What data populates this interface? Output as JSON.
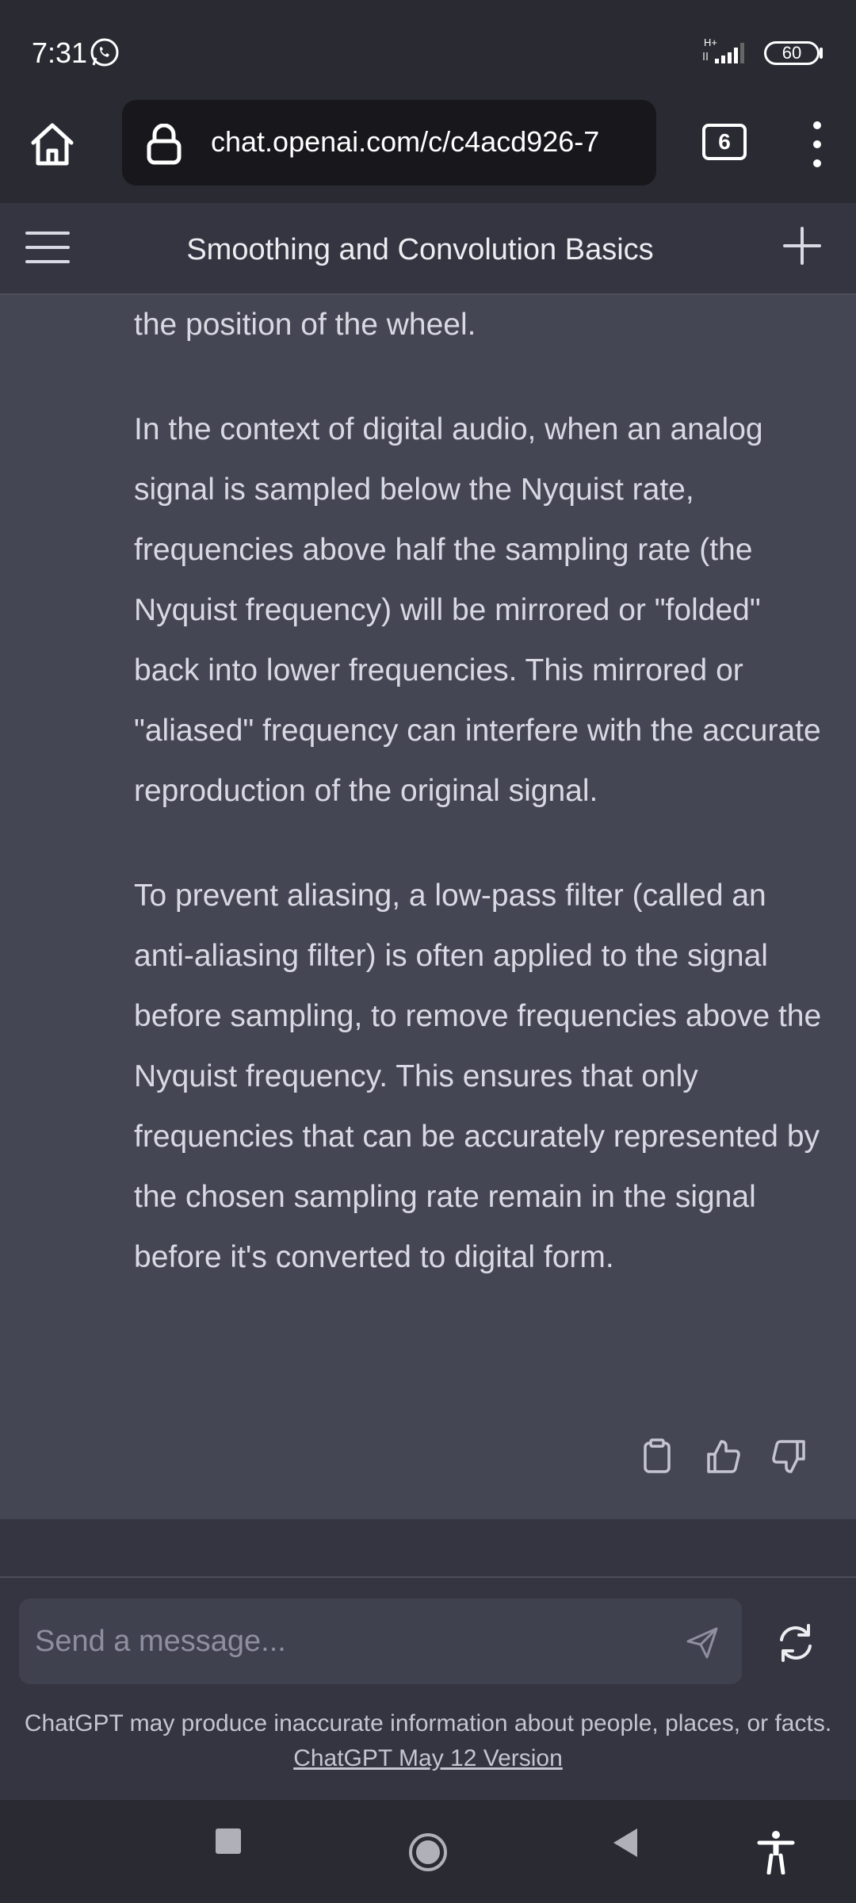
{
  "status_bar": {
    "time": "7:31",
    "network_type": "H+",
    "battery": "60"
  },
  "browser": {
    "url": "chat.openai.com/c/c4acd926-7",
    "tab_count": "6"
  },
  "header": {
    "title": "Smoothing and Convolution Basics"
  },
  "message": {
    "paragraphs": [
      "the position of the wheel.",
      "In the context of digital audio, when an analog signal is sampled below the Nyquist rate, frequencies above half the sampling rate (the Nyquist frequency) will be mirrored or \"folded\" back into lower frequencies. This mirrored or \"aliased\" frequency can interfere with the accurate reproduction of the original signal.",
      "To prevent aliasing, a low-pass filter (called an anti-aliasing filter) is often applied to the signal before sampling, to remove frequencies above the Nyquist frequency. This ensures that only frequencies that can be accurately represented by the chosen sampling rate remain in the signal before it's converted to digital form."
    ]
  },
  "input": {
    "placeholder": "Send a message...",
    "value": ""
  },
  "footer": {
    "disclaimer": "ChatGPT may produce inaccurate information about people, places, or facts.",
    "version_link": "ChatGPT May 12 Version"
  },
  "icons": {
    "home": "home-icon",
    "lock": "lock-icon",
    "menu": "hamburger-icon",
    "new_chat": "plus-icon",
    "copy": "clipboard-icon",
    "like": "thumbs-up-icon",
    "dislike": "thumbs-down-icon",
    "send": "send-icon",
    "regenerate": "refresh-icon"
  },
  "colors": {
    "background": "#2a2a33",
    "message_bg": "#444654",
    "header_bg": "#343541",
    "input_bg": "#40414f"
  }
}
